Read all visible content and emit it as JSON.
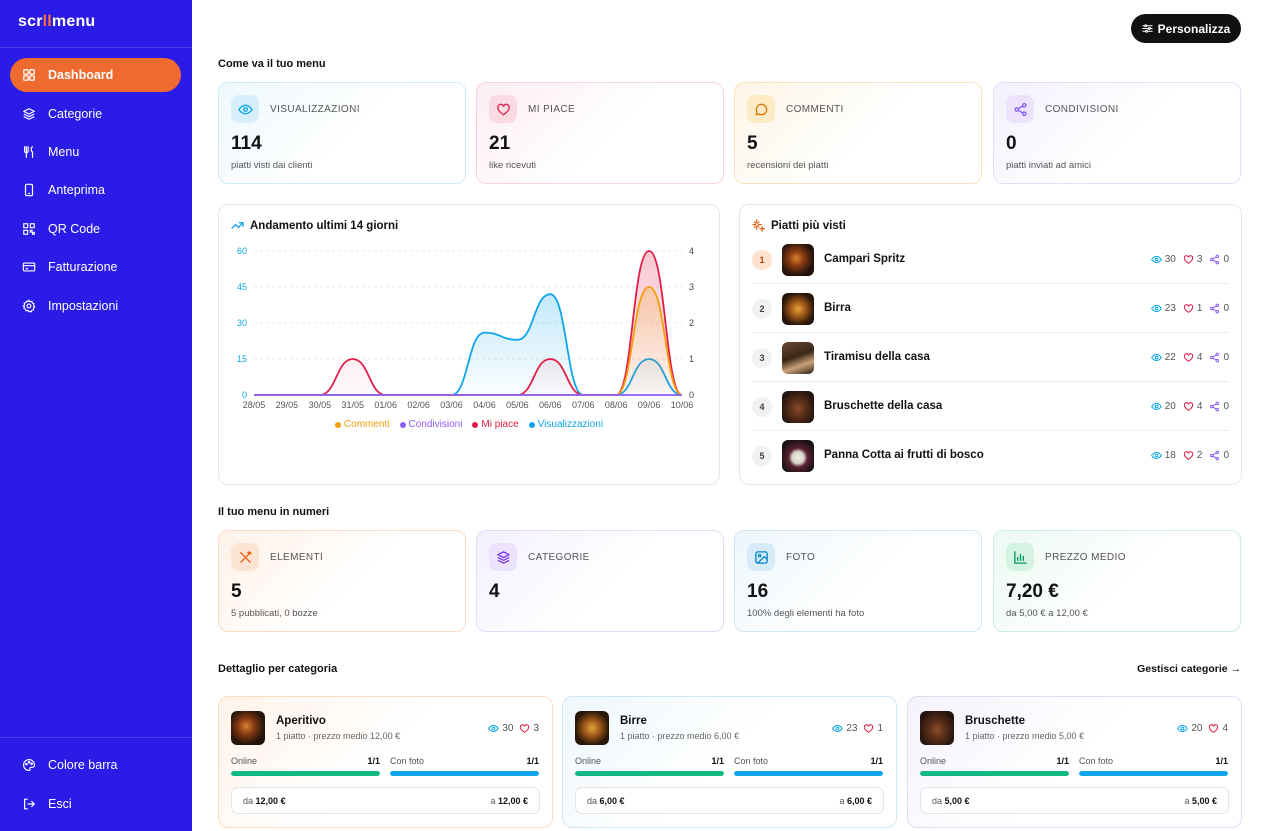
{
  "app": {
    "logo_a": "scr",
    "logo_b": "ll",
    "logo_c": "menu"
  },
  "sidebar": {
    "items": [
      {
        "label": "Dashboard",
        "icon": "dashboard-icon"
      },
      {
        "label": "Categorie",
        "icon": "layers-icon"
      },
      {
        "label": "Menu",
        "icon": "utensils-icon"
      },
      {
        "label": "Anteprima",
        "icon": "phone-icon"
      },
      {
        "label": "QR Code",
        "icon": "qr-icon"
      },
      {
        "label": "Fatturazione",
        "icon": "card-icon"
      },
      {
        "label": "Impostazioni",
        "icon": "gear-icon"
      }
    ],
    "bottom": [
      {
        "label": "Colore barra",
        "icon": "palette-icon"
      },
      {
        "label": "Esci",
        "icon": "logout-icon"
      }
    ]
  },
  "header": {
    "customize": "Personalizza"
  },
  "performance": {
    "title": "Come va il tuo menu",
    "stats": [
      {
        "label": "VISUALIZZAZIONI",
        "value": "114",
        "sub": "piatti visti dai clienti",
        "color": "#0ea5e9"
      },
      {
        "label": "MI PIACE",
        "value": "21",
        "sub": "like ricevuti",
        "color": "#e11d48"
      },
      {
        "label": "COMMENTI",
        "value": "5",
        "sub": "recensioni dei piatti",
        "color": "#d97706"
      },
      {
        "label": "CONDIVISIONI",
        "value": "0",
        "sub": "piatti inviati ad amici",
        "color": "#8b5cf6"
      }
    ]
  },
  "chart_data": {
    "type": "area",
    "title": "Andamento ultimi 14 giorni",
    "categories": [
      "28/05",
      "29/05",
      "30/05",
      "31/05",
      "01/06",
      "02/06",
      "03/06",
      "04/06",
      "05/06",
      "06/06",
      "07/06",
      "08/06",
      "09/06",
      "10/06"
    ],
    "y_left": {
      "ticks": [
        "60",
        "45",
        "30",
        "15",
        "0"
      ],
      "ylim": [
        0,
        60
      ]
    },
    "y_right": {
      "ticks": [
        "4",
        "3",
        "2",
        "1",
        "0"
      ],
      "ylim": [
        0,
        4
      ]
    },
    "series": [
      {
        "name": "Commenti",
        "axis": "right",
        "color": "#f59e0b",
        "values": [
          0,
          0,
          0,
          0,
          0,
          0,
          0,
          0,
          0,
          0,
          0,
          0,
          3,
          0
        ]
      },
      {
        "name": "Condivisioni",
        "axis": "right",
        "color": "#8b5cf6",
        "values": [
          0,
          0,
          0,
          0,
          0,
          0,
          0,
          0,
          0,
          0,
          0,
          0,
          0,
          0
        ]
      },
      {
        "name": "Mi piace",
        "axis": "right",
        "color": "#e11d48",
        "values": [
          0,
          0,
          0,
          1,
          0,
          0,
          0,
          0,
          0,
          1,
          0,
          0,
          4,
          0
        ]
      },
      {
        "name": "Visualizzazioni",
        "axis": "left",
        "color": "#0ea5e9",
        "values": [
          0,
          0,
          0,
          0,
          0,
          0,
          0,
          26,
          23,
          42,
          0,
          0,
          15,
          0
        ]
      }
    ],
    "legend_position": "bottom"
  },
  "top_dishes": {
    "title": "Piatti più visti",
    "items": [
      {
        "rank": "1",
        "name": "Campari Spritz",
        "views": "30",
        "likes": "3",
        "shares": "0"
      },
      {
        "rank": "2",
        "name": "Birra",
        "views": "23",
        "likes": "1",
        "shares": "0"
      },
      {
        "rank": "3",
        "name": "Tiramisu della casa",
        "views": "22",
        "likes": "4",
        "shares": "0"
      },
      {
        "rank": "4",
        "name": "Bruschette della casa",
        "views": "20",
        "likes": "4",
        "shares": "0"
      },
      {
        "rank": "5",
        "name": "Panna Cotta ai frutti di bosco",
        "views": "18",
        "likes": "2",
        "shares": "0"
      }
    ]
  },
  "numbers": {
    "title": "Il tuo menu in numeri",
    "stats": [
      {
        "label": "ELEMENTI",
        "value": "5",
        "sub": "5 pubblicati, 0 bozze",
        "color": "#ea580c"
      },
      {
        "label": "CATEGORIE",
        "value": "4",
        "sub": "",
        "color": "#7c3aed"
      },
      {
        "label": "FOTO",
        "value": "16",
        "sub": "100% degli elementi ha foto",
        "color": "#0284c7"
      },
      {
        "label": "PREZZO MEDIO",
        "value": "7,20 €",
        "sub": "da 5,00 € a 12,00 €",
        "color": "#059669"
      }
    ]
  },
  "categories_detail": {
    "title": "Dettaglio per categoria",
    "manage": "Gestisci categorie →",
    "online_label": "Online",
    "photo_label": "Con foto",
    "items": [
      {
        "name": "Aperitivo",
        "sub": "1 piatto · prezzo medio 12,00 €",
        "views": "30",
        "likes": "3",
        "online": "1/1",
        "online_pct": 1,
        "photo": "1/1",
        "photo_pct": 1,
        "min_label": "da",
        "min": "12,00 €",
        "max_label": "a",
        "max": "12,00 €"
      },
      {
        "name": "Birre",
        "sub": "1 piatto · prezzo medio 6,00 €",
        "views": "23",
        "likes": "1",
        "online": "1/1",
        "online_pct": 1,
        "photo": "1/1",
        "photo_pct": 1,
        "min_label": "da",
        "min": "6,00 €",
        "max_label": "a",
        "max": "6,00 €"
      },
      {
        "name": "Bruschette",
        "sub": "1 piatto · prezzo medio 5,00 €",
        "views": "20",
        "likes": "4",
        "online": "1/1",
        "online_pct": 1,
        "photo": "1/1",
        "photo_pct": 1,
        "min_label": "da",
        "min": "5,00 €",
        "max_label": "a",
        "max": "5,00 €"
      }
    ]
  }
}
